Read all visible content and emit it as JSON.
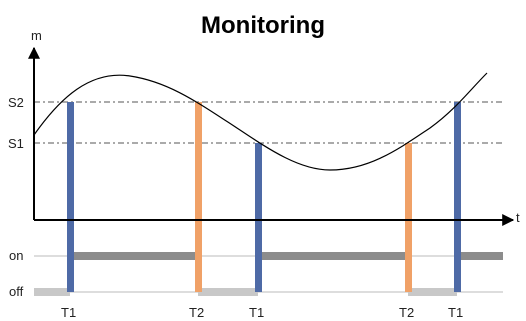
{
  "title": "Monitoring",
  "axes": {
    "y_label": "m",
    "x_label": "t"
  },
  "thresholds": {
    "upper": "S2",
    "lower": "S1"
  },
  "states": {
    "on": "on",
    "off": "off"
  },
  "events": [
    {
      "label": "T1",
      "threshold": "S2",
      "kind": "T1"
    },
    {
      "label": "T2",
      "threshold": "S2",
      "kind": "T2"
    },
    {
      "label": "T1",
      "threshold": "S1",
      "kind": "T1"
    },
    {
      "label": "T2",
      "threshold": "S1",
      "kind": "T2"
    },
    {
      "label": "T1",
      "threshold": "S2",
      "kind": "T1"
    }
  ],
  "colors": {
    "T1": "#4e6aa6",
    "T2": "#f0a167",
    "on_bar": "#8c8c8c",
    "off_bar": "#c8c8c8",
    "axis": "#000000",
    "dash": "#555555",
    "curve": "#000000"
  }
}
